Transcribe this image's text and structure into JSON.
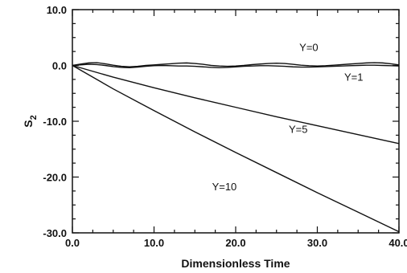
{
  "chart_data": {
    "type": "line",
    "title": "",
    "xlabel": "Dimensionless Time",
    "ylabel_main": "S",
    "ylabel_sub": "2",
    "xlim": [
      0,
      40
    ],
    "ylim": [
      -30,
      10
    ],
    "grid": false,
    "x_ticks": [
      0,
      10,
      20,
      30,
      40
    ],
    "x_tick_labels": [
      "0.0",
      "10.0",
      "20.0",
      "30.0",
      "40.0"
    ],
    "y_ticks": [
      10,
      0,
      -10,
      -20,
      -30
    ],
    "y_tick_labels": [
      "10.0",
      "0.0",
      "-10.0",
      "-20.0",
      "-30.0"
    ],
    "series": [
      {
        "name": "Y=0",
        "x": [
          0,
          1,
          2,
          3,
          4,
          5,
          6,
          7,
          8,
          9,
          10,
          11,
          12,
          13,
          14,
          15,
          16,
          17,
          18,
          19,
          20,
          21,
          22,
          23,
          24,
          25,
          26,
          27,
          28,
          29,
          30,
          31,
          32,
          33,
          34,
          35,
          36,
          37,
          38,
          39,
          40
        ],
        "y": [
          0,
          0.25,
          0.45,
          0.5,
          0.3,
          0.05,
          -0.15,
          -0.25,
          -0.15,
          0.0,
          0.1,
          0.2,
          0.3,
          0.4,
          0.45,
          0.35,
          0.2,
          0.0,
          -0.1,
          -0.15,
          -0.1,
          0.0,
          0.15,
          0.25,
          0.35,
          0.4,
          0.35,
          0.2,
          0.05,
          -0.05,
          -0.1,
          -0.05,
          0.05,
          0.15,
          0.25,
          0.35,
          0.45,
          0.5,
          0.45,
          0.3,
          0.1
        ]
      },
      {
        "name": "Y=1",
        "x": [
          0,
          1,
          2,
          3,
          4,
          5,
          6,
          7,
          8,
          9,
          10,
          11,
          12,
          13,
          14,
          15,
          16,
          17,
          18,
          19,
          20,
          21,
          22,
          23,
          24,
          25,
          26,
          27,
          28,
          29,
          30,
          31,
          32,
          33,
          34,
          35,
          36,
          37,
          38,
          39,
          40
        ],
        "y": [
          0,
          0.1,
          0.2,
          0.15,
          0.0,
          -0.2,
          -0.35,
          -0.4,
          -0.3,
          -0.15,
          -0.05,
          0.0,
          -0.05,
          -0.1,
          -0.1,
          -0.15,
          -0.25,
          -0.35,
          -0.4,
          -0.35,
          -0.25,
          -0.15,
          -0.1,
          -0.05,
          -0.05,
          -0.1,
          -0.15,
          -0.25,
          -0.3,
          -0.3,
          -0.25,
          -0.2,
          -0.15,
          -0.1,
          -0.05,
          0.0,
          0.05,
          0.05,
          0.0,
          -0.05,
          -0.1
        ]
      },
      {
        "name": "Y=5",
        "x": [
          0,
          5,
          10,
          15,
          20,
          25,
          30,
          35,
          40
        ],
        "y": [
          0,
          -2.1,
          -4.0,
          -5.8,
          -7.5,
          -9.2,
          -10.8,
          -12.4,
          -14.0
        ]
      },
      {
        "name": "Y=10",
        "x": [
          0,
          5,
          10,
          15,
          20,
          25,
          30,
          35,
          40
        ],
        "y": [
          0,
          -4.2,
          -8.1,
          -11.9,
          -15.6,
          -19.2,
          -22.8,
          -26.3,
          -29.8
        ]
      }
    ],
    "annotations": [
      {
        "text": "Y=0",
        "x": 27.8,
        "y": 2.6
      },
      {
        "text": "Y=1",
        "x": 33.3,
        "y": -2.7
      },
      {
        "text": "Y=5",
        "x": 26.5,
        "y": -12.1
      },
      {
        "text": "Y=10",
        "x": 17.1,
        "y": -22.4
      }
    ]
  }
}
